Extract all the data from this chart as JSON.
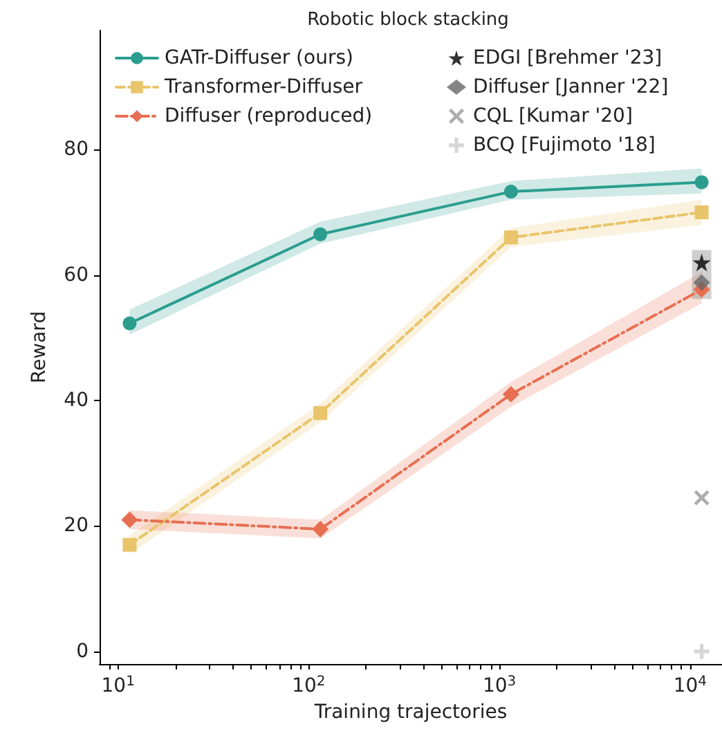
{
  "chart_data": {
    "type": "line",
    "title": "Robotic block stacking",
    "xlabel": "Training trajectories",
    "ylabel": "Reward",
    "log": "x",
    "grid": false,
    "legend": "top",
    "xlim": [
      8,
      14700
    ],
    "ylim": [
      -2,
      99
    ],
    "xticks": [
      {
        "value": 10,
        "label": "10$^{1}$"
      },
      {
        "value": 100,
        "label": "10$^{2}$"
      },
      {
        "value": 1000,
        "label": "10$^{3}$"
      },
      {
        "value": 10000,
        "label": "10$^{4}$"
      },
      {
        "value": 9,
        "label": null
      },
      {
        "value": 20,
        "label": null
      },
      {
        "value": 30,
        "label": null
      },
      {
        "value": 40,
        "label": null
      },
      {
        "value": 50,
        "label": null
      },
      {
        "value": 60,
        "label": null
      },
      {
        "value": 70,
        "label": null
      },
      {
        "value": 80,
        "label": null
      },
      {
        "value": 90,
        "label": null
      },
      {
        "value": 200,
        "label": null
      },
      {
        "value": 300,
        "label": null
      },
      {
        "value": 400,
        "label": null
      },
      {
        "value": 500,
        "label": null
      },
      {
        "value": 600,
        "label": null
      },
      {
        "value": 700,
        "label": null
      },
      {
        "value": 800,
        "label": null
      },
      {
        "value": 900,
        "label": null
      },
      {
        "value": 2000,
        "label": null
      },
      {
        "value": 3000,
        "label": null
      },
      {
        "value": 4000,
        "label": null
      },
      {
        "value": 5000,
        "label": null
      },
      {
        "value": 6000,
        "label": null
      },
      {
        "value": 7000,
        "label": null
      },
      {
        "value": 8000,
        "label": null
      },
      {
        "value": 9000,
        "label": null
      }
    ],
    "yticks": [
      0,
      20,
      40,
      60,
      80
    ],
    "series": [
      {
        "name": "GATr-Diffuser (ours)",
        "color": "#2a9d8f",
        "marker": "circle",
        "line_style": "solid",
        "x": [
          11.5,
          115,
          1150,
          11500
        ],
        "values": [
          52.3,
          66.5,
          73.3,
          74.8
        ],
        "lower": [
          50.5,
          65,
          72,
          73
        ],
        "upper": [
          54.5,
          68.5,
          75,
          77
        ]
      },
      {
        "name": "Transformer-Diffuser",
        "color": "#e9c46a",
        "marker": "square",
        "line_style": "dashed",
        "x": [
          11.5,
          115,
          1150,
          11500
        ],
        "values": [
          17,
          38,
          66,
          70
        ],
        "lower": [
          15.5,
          36.5,
          64.5,
          68
        ],
        "upper": [
          18.5,
          39.5,
          67.5,
          72
        ]
      },
      {
        "name": "Diffuser (reproduced)",
        "color": "#e76f51",
        "marker": "diamond",
        "line_style": "dashdot",
        "x": [
          11.5,
          115,
          1150,
          11500
        ],
        "values": [
          21,
          19.5,
          41,
          57.7
        ],
        "lower": [
          19.5,
          18,
          39,
          55.5
        ],
        "upper": [
          22.5,
          21,
          43,
          60.5
        ]
      },
      {
        "name": "EDGI [Brehmer '23]",
        "type": "scatter",
        "color": "#000000",
        "marker": "star",
        "x": [
          11500
        ],
        "values": [
          62
        ],
        "errors": [
          [
            60,
            64
          ]
        ]
      },
      {
        "name": "Diffuser [Janner '22]",
        "type": "scatter",
        "color": "#666666",
        "marker": "diamond",
        "x": [
          11500
        ],
        "values": [
          58.8
        ],
        "errors": [
          [
            56.2,
            60
          ]
        ]
      },
      {
        "name": "CQL [Kumar '20]",
        "type": "scatter",
        "color": "#999999",
        "marker": "cross",
        "x": [
          11500
        ],
        "values": [
          24.5
        ]
      },
      {
        "name": "BCQ [Fujimoto '18]",
        "type": "scatter",
        "color": "#cccccc",
        "marker": "plus",
        "x": [
          11500
        ],
        "values": [
          0
        ]
      }
    ]
  }
}
